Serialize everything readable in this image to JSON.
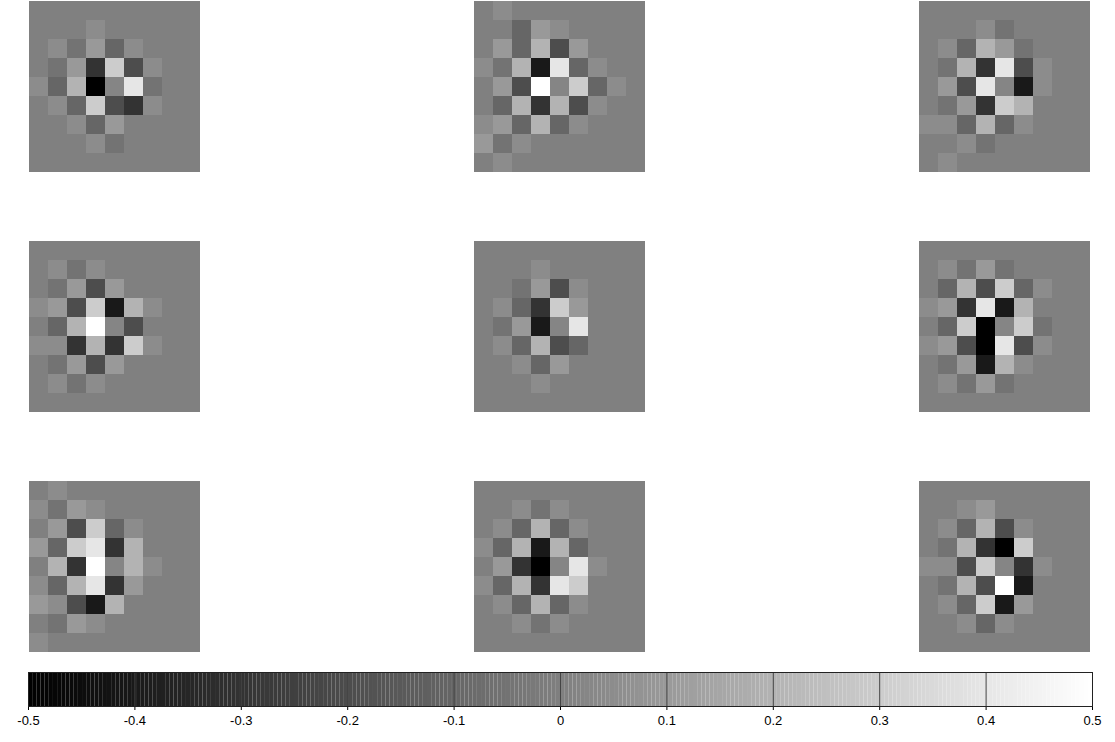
{
  "chart_data": {
    "type": "heatmap",
    "color": "gray",
    "tick_labels": false,
    "color_range": [
      -0.5,
      0.5
    ],
    "colorbar_ticks": [
      -0.5,
      -0.4,
      -0.3,
      -0.2,
      -0.1,
      0,
      0.1,
      0.2,
      0.3,
      0.4,
      0.5
    ],
    "panels": [
      {
        "cells": [
          [
            0,
            0,
            0,
            0,
            0,
            0,
            0,
            0,
            0
          ],
          [
            0,
            0,
            0,
            0.05,
            0,
            0,
            0,
            0,
            0
          ],
          [
            0,
            0.05,
            -0.05,
            0.1,
            -0.1,
            0.05,
            0,
            0,
            0
          ],
          [
            0,
            -0.05,
            0.1,
            -0.3,
            0.3,
            -0.2,
            0.05,
            0,
            0
          ],
          [
            0.05,
            -0.1,
            0.2,
            -0.5,
            0.02,
            0.4,
            -0.05,
            0,
            0
          ],
          [
            0,
            0.05,
            -0.1,
            0.3,
            -0.2,
            -0.3,
            0.05,
            0,
            0
          ],
          [
            0,
            0,
            0.05,
            -0.1,
            0.1,
            0,
            0,
            0,
            0
          ],
          [
            0,
            0,
            0,
            0.05,
            -0.05,
            0,
            0,
            0,
            0
          ],
          [
            0,
            0,
            0,
            0,
            0,
            0,
            0,
            0,
            0
          ]
        ]
      },
      {
        "cells": [
          [
            0,
            0.05,
            0,
            0,
            0,
            0,
            0,
            0,
            0
          ],
          [
            0,
            0,
            -0.1,
            0.1,
            0.05,
            0,
            0,
            0,
            0
          ],
          [
            0,
            0.1,
            -0.1,
            0.2,
            -0.2,
            0.1,
            0,
            0,
            0
          ],
          [
            0.05,
            -0.05,
            0.2,
            -0.4,
            0.4,
            -0.1,
            0.05,
            0,
            0
          ],
          [
            0,
            0.1,
            -0.2,
            0.5,
            0.02,
            0.3,
            -0.1,
            0.05,
            0
          ],
          [
            0,
            -0.1,
            0.2,
            -0.3,
            0.2,
            -0.2,
            0.05,
            0,
            0
          ],
          [
            0.05,
            0.1,
            -0.1,
            0.2,
            -0.1,
            0.05,
            0,
            0,
            0
          ],
          [
            0.1,
            -0.05,
            0.05,
            0,
            0,
            0,
            0,
            0,
            0
          ],
          [
            0,
            0.05,
            0,
            0,
            0,
            0,
            0,
            0,
            0
          ]
        ]
      },
      {
        "cells": [
          [
            0,
            0,
            0,
            0,
            0,
            0,
            0,
            0,
            0
          ],
          [
            0,
            0,
            0,
            0.05,
            -0.05,
            0,
            0,
            0,
            0
          ],
          [
            0,
            0.05,
            -0.1,
            0.2,
            0.1,
            -0.05,
            0,
            0,
            0
          ],
          [
            0,
            -0.05,
            0.2,
            -0.3,
            0.4,
            -0.2,
            0.05,
            0,
            0
          ],
          [
            0,
            0.1,
            -0.2,
            0.4,
            0.02,
            -0.4,
            0.05,
            0,
            0
          ],
          [
            0,
            -0.05,
            0.1,
            -0.3,
            0.3,
            0.2,
            0,
            0,
            0
          ],
          [
            0.05,
            0.05,
            -0.1,
            0.2,
            -0.1,
            0.05,
            0,
            0,
            0
          ],
          [
            0,
            0,
            0.05,
            -0.05,
            0,
            0,
            0,
            0,
            0
          ],
          [
            0,
            0.05,
            0,
            0,
            0,
            0,
            0,
            0,
            0
          ]
        ]
      },
      {
        "cells": [
          [
            0,
            0,
            0,
            0,
            0,
            0,
            0,
            0,
            0
          ],
          [
            0,
            0.05,
            -0.05,
            0.05,
            0,
            0,
            0,
            0,
            0
          ],
          [
            0,
            -0.05,
            0.1,
            -0.2,
            0.1,
            0,
            0,
            0,
            0
          ],
          [
            0.05,
            0.1,
            -0.2,
            0.3,
            -0.4,
            0.2,
            0.05,
            0,
            0
          ],
          [
            0,
            -0.1,
            0.2,
            0.5,
            0.02,
            -0.2,
            0,
            0,
            0
          ],
          [
            0.05,
            0.05,
            -0.3,
            0.2,
            -0.3,
            0.3,
            0.05,
            0,
            0
          ],
          [
            0,
            -0.05,
            0.1,
            -0.2,
            0.1,
            0,
            0,
            0,
            0
          ],
          [
            0,
            0.05,
            -0.05,
            0.05,
            0,
            0,
            0,
            0,
            0
          ],
          [
            0,
            0,
            0,
            0,
            0,
            0,
            0,
            0,
            0
          ]
        ]
      },
      {
        "cells": [
          [
            0,
            0,
            0,
            0,
            0,
            0,
            0,
            0,
            0
          ],
          [
            0,
            0,
            0,
            0.05,
            0,
            0,
            0,
            0,
            0
          ],
          [
            0,
            0,
            -0.05,
            0.1,
            -0.2,
            0.05,
            0,
            0,
            0
          ],
          [
            0,
            0.05,
            -0.1,
            -0.3,
            0.3,
            0.1,
            0,
            0,
            0
          ],
          [
            0,
            -0.05,
            0.1,
            -0.4,
            0.02,
            0.4,
            0,
            0,
            0
          ],
          [
            0,
            0.05,
            -0.1,
            0.2,
            -0.2,
            -0.1,
            0,
            0,
            0
          ],
          [
            0,
            0,
            0.05,
            -0.1,
            0.1,
            0,
            0,
            0,
            0
          ],
          [
            0,
            0,
            0,
            0.05,
            0,
            0,
            0,
            0,
            0
          ],
          [
            0,
            0,
            0,
            0,
            0,
            0,
            0,
            0,
            0
          ]
        ]
      },
      {
        "cells": [
          [
            0,
            0,
            0,
            0,
            0,
            0,
            0,
            0,
            0
          ],
          [
            0,
            0.05,
            -0.05,
            0.1,
            -0.05,
            0,
            0,
            0,
            0
          ],
          [
            0,
            -0.1,
            0.2,
            -0.2,
            0.3,
            -0.1,
            0.05,
            0,
            0
          ],
          [
            0.05,
            0.1,
            -0.3,
            0.4,
            -0.4,
            0.2,
            0,
            0,
            0
          ],
          [
            0,
            -0.1,
            0.3,
            -0.5,
            0.02,
            0.3,
            -0.05,
            0,
            0
          ],
          [
            0.05,
            0.1,
            -0.2,
            -0.5,
            0.4,
            -0.2,
            0.05,
            0,
            0
          ],
          [
            0,
            -0.05,
            0.1,
            -0.4,
            0.2,
            0.05,
            0,
            0,
            0
          ],
          [
            0,
            0.05,
            -0.05,
            0.1,
            -0.05,
            0,
            0,
            0,
            0
          ],
          [
            0,
            0,
            0,
            0,
            0,
            0,
            0,
            0,
            0
          ]
        ]
      },
      {
        "cells": [
          [
            0,
            0.05,
            0,
            0,
            0,
            0,
            0,
            0,
            0
          ],
          [
            0.05,
            -0.05,
            0.1,
            0.05,
            0,
            0,
            0,
            0,
            0
          ],
          [
            0,
            0.1,
            -0.2,
            0.3,
            -0.1,
            0.05,
            0,
            0,
            0
          ],
          [
            0.1,
            -0.1,
            0.3,
            0.4,
            -0.3,
            0.2,
            0,
            0,
            0
          ],
          [
            0,
            0.2,
            -0.3,
            0.5,
            0.02,
            0.2,
            0.05,
            0,
            0
          ],
          [
            0.05,
            -0.1,
            0.2,
            0.4,
            -0.3,
            0.1,
            0,
            0,
            0
          ],
          [
            0.1,
            0.05,
            -0.2,
            -0.4,
            0.2,
            0,
            0,
            0,
            0
          ],
          [
            0,
            -0.05,
            0.1,
            0.05,
            0,
            0,
            0,
            0,
            0
          ],
          [
            0.05,
            0,
            0,
            0,
            0,
            0,
            0,
            0,
            0
          ]
        ]
      },
      {
        "cells": [
          [
            0,
            0,
            0,
            0,
            0,
            0,
            0,
            0,
            0
          ],
          [
            0,
            0,
            0.05,
            -0.05,
            0.05,
            0,
            0,
            0,
            0
          ],
          [
            0,
            0.05,
            -0.1,
            0.2,
            -0.1,
            0.05,
            0,
            0,
            0
          ],
          [
            0.05,
            -0.1,
            0.2,
            -0.4,
            0.2,
            -0.1,
            0,
            0,
            0
          ],
          [
            0,
            0.1,
            -0.3,
            -0.5,
            0.02,
            0.4,
            0.05,
            0,
            0
          ],
          [
            0.05,
            -0.1,
            0.2,
            -0.3,
            0.4,
            0.3,
            0,
            0,
            0
          ],
          [
            0,
            0.05,
            -0.1,
            0.2,
            -0.1,
            0.05,
            0,
            0,
            0
          ],
          [
            0,
            0,
            0.05,
            -0.05,
            0.05,
            0,
            0,
            0,
            0
          ],
          [
            0,
            0,
            0,
            0,
            0,
            0,
            0,
            0,
            0
          ]
        ]
      },
      {
        "cells": [
          [
            0,
            0,
            0,
            0,
            0,
            0,
            0,
            0,
            0
          ],
          [
            0,
            0,
            0.05,
            0.1,
            0,
            0,
            0,
            0,
            0
          ],
          [
            0,
            0.05,
            -0.1,
            0.2,
            -0.2,
            0.05,
            0,
            0,
            0
          ],
          [
            0,
            -0.05,
            0.2,
            -0.3,
            -0.5,
            0.3,
            0,
            0,
            0
          ],
          [
            0.05,
            0.05,
            -0.2,
            0.3,
            0.02,
            -0.3,
            0.05,
            0,
            0
          ],
          [
            0,
            -0.05,
            0.2,
            -0.2,
            0.5,
            -0.4,
            0,
            0,
            0
          ],
          [
            0,
            0.05,
            -0.1,
            0.3,
            -0.4,
            0.1,
            0,
            0,
            0
          ],
          [
            0,
            0,
            0.05,
            -0.1,
            0.05,
            0,
            0,
            0,
            0
          ],
          [
            0,
            0,
            0,
            0,
            0,
            0,
            0,
            0,
            0
          ]
        ]
      }
    ]
  }
}
